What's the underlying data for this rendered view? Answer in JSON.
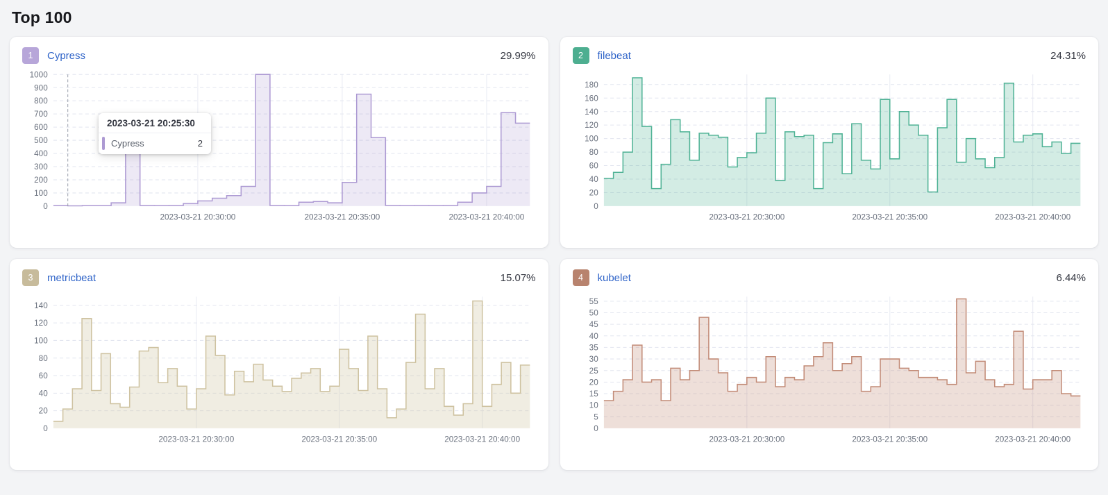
{
  "page": {
    "title": "Top 100"
  },
  "cards": [
    {
      "rank": "1",
      "name": "Cypress",
      "percent": "29.99%"
    },
    {
      "rank": "2",
      "name": "filebeat",
      "percent": "24.31%"
    },
    {
      "rank": "3",
      "name": "metricbeat",
      "percent": "15.07%"
    },
    {
      "rank": "4",
      "name": "kubelet",
      "percent": "6.44%"
    }
  ],
  "tooltip": {
    "title": "2023-03-21 20:25:30",
    "series": "Cypress",
    "value": "2",
    "chart_index": 0
  },
  "colors": {
    "link": "#2e63c8",
    "percent_text": "#343741",
    "axis_text": "#69707d",
    "grid_h": "#e2e5ef",
    "grid_v": "#e9ebf3",
    "crosshair": "#9aa0ab",
    "cards": [
      {
        "badge": "#b7a6d9",
        "stroke": "#ad9ad3",
        "fill": "rgba(173,154,211,0.22)"
      },
      {
        "badge": "#4dae90",
        "stroke": "#4fb295",
        "fill": "rgba(79,178,149,0.25)"
      },
      {
        "badge": "#c7bb9b",
        "stroke": "#cec2a0",
        "fill": "rgba(206,194,160,0.30)"
      },
      {
        "badge": "#b8836e",
        "stroke": "#c28b77",
        "fill": "rgba(194,139,119,0.28)"
      }
    ]
  },
  "chart_data": [
    {
      "type": "area-step",
      "title": "Cypress",
      "x_start": "2023-03-21 20:25:00",
      "x_interval_seconds": 30,
      "x_tick_labels": [
        "2023-03-21 20:30:00",
        "2023-03-21 20:35:00",
        "2023-03-21 20:40:00"
      ],
      "x_tick_offsets_seconds": [
        300,
        600,
        900
      ],
      "y_ticks": [
        0,
        100,
        200,
        300,
        400,
        500,
        600,
        700,
        800,
        900,
        1000
      ],
      "ylim": [
        0,
        1000
      ],
      "grid": true,
      "crosshair_offset_seconds": 30,
      "series": [
        {
          "name": "Cypress",
          "values": [
            5,
            2,
            4,
            4,
            25,
            490,
            5,
            4,
            5,
            20,
            40,
            60,
            80,
            150,
            1000,
            5,
            4,
            30,
            35,
            25,
            180,
            850,
            520,
            5,
            4,
            5,
            4,
            5,
            30,
            100,
            150,
            710,
            630
          ]
        }
      ]
    },
    {
      "type": "area-step",
      "title": "filebeat",
      "x_start": "2023-03-21 20:25:00",
      "x_interval_seconds": 20,
      "x_tick_labels": [
        "2023-03-21 20:30:00",
        "2023-03-21 20:35:00",
        "2023-03-21 20:40:00"
      ],
      "x_tick_offsets_seconds": [
        300,
        600,
        900
      ],
      "y_ticks": [
        0,
        20,
        40,
        60,
        80,
        100,
        120,
        140,
        160,
        180
      ],
      "ylim": [
        0,
        195
      ],
      "grid": true,
      "series": [
        {
          "name": "filebeat",
          "values": [
            41,
            50,
            80,
            190,
            118,
            26,
            62,
            128,
            110,
            68,
            108,
            105,
            102,
            58,
            72,
            79,
            108,
            160,
            38,
            110,
            103,
            105,
            26,
            94,
            107,
            48,
            122,
            68,
            55,
            158,
            70,
            140,
            120,
            105,
            21,
            116,
            158,
            65,
            100,
            70,
            57,
            72,
            182,
            95,
            105,
            107,
            88,
            95,
            78,
            93
          ]
        }
      ]
    },
    {
      "type": "area-step",
      "title": "metricbeat",
      "x_start": "2023-03-21 20:25:00",
      "x_interval_seconds": 20,
      "x_tick_labels": [
        "2023-03-21 20:30:00",
        "2023-03-21 20:35:00",
        "2023-03-21 20:40:00"
      ],
      "x_tick_offsets_seconds": [
        300,
        600,
        900
      ],
      "y_ticks": [
        0,
        20,
        40,
        60,
        80,
        100,
        120,
        140
      ],
      "ylim": [
        0,
        150
      ],
      "grid": true,
      "series": [
        {
          "name": "metricbeat",
          "values": [
            8,
            22,
            45,
            125,
            43,
            85,
            28,
            24,
            47,
            88,
            92,
            52,
            68,
            48,
            22,
            45,
            105,
            83,
            38,
            65,
            53,
            73,
            55,
            48,
            42,
            57,
            63,
            68,
            42,
            48,
            90,
            68,
            43,
            105,
            45,
            12,
            22,
            75,
            130,
            45,
            68,
            25,
            15,
            28,
            145,
            25,
            50,
            75,
            40,
            72
          ]
        }
      ]
    },
    {
      "type": "area-step",
      "title": "kubelet",
      "x_start": "2023-03-21 20:25:00",
      "x_interval_seconds": 20,
      "x_tick_labels": [
        "2023-03-21 20:30:00",
        "2023-03-21 20:35:00",
        "2023-03-21 20:40:00"
      ],
      "x_tick_offsets_seconds": [
        300,
        600,
        900
      ],
      "y_ticks": [
        0,
        5,
        10,
        15,
        20,
        25,
        30,
        35,
        40,
        45,
        50,
        55
      ],
      "ylim": [
        0,
        57
      ],
      "grid": true,
      "series": [
        {
          "name": "kubelet",
          "values": [
            12,
            16,
            21,
            36,
            20,
            21,
            12,
            26,
            21,
            25,
            48,
            30,
            24,
            16,
            19,
            22,
            20,
            31,
            18,
            22,
            21,
            27,
            31,
            37,
            25,
            28,
            31,
            16,
            18,
            30,
            30,
            26,
            25,
            22,
            22,
            21,
            19,
            56,
            24,
            29,
            21,
            18,
            19,
            42,
            17,
            21,
            21,
            25,
            15,
            14
          ]
        }
      ]
    }
  ]
}
